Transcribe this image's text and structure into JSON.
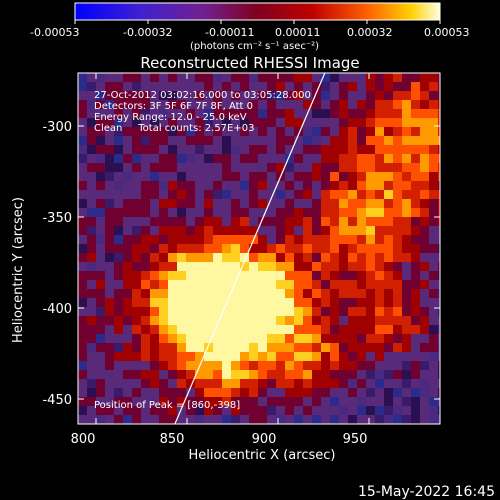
{
  "colorbar": {
    "ticks": [
      "-0.00053",
      "-0.00032",
      "-0.00011",
      "0.00011",
      "0.00032",
      "0.00053"
    ],
    "units": "(photons cm⁻² s⁻¹ asec⁻²)"
  },
  "title": "Reconstructed RHESSI Image",
  "info": {
    "time": "27-Oct-2012 03:02:16.000 to 03:05:28.000",
    "detectors": "Detectors: 3F 5F 6F 7F 8F, Att 0",
    "energy": "Energy Range: 12.0 - 25.0 keV",
    "method": "Clean     Total counts: 2.57E+03"
  },
  "peak": "Position of Peak = [860,-398]",
  "x_axis": {
    "label": "Heliocentric X (arcsec)",
    "ticks": [
      "800",
      "850",
      "900",
      "950"
    ]
  },
  "y_axis": {
    "label": "Heliocentric Y (arcsec)",
    "ticks": [
      "-300",
      "-350",
      "-400",
      "-450"
    ]
  },
  "footer": "15-May-2022 16:45",
  "colors": {
    "background": "#000000",
    "foreground": "#ffffff",
    "limb": "#ffffff"
  },
  "chart_data": {
    "type": "heatmap",
    "title": "Reconstructed RHESSI Image",
    "xlabel": "Heliocentric X (arcsec)",
    "ylabel": "Heliocentric Y (arcsec)",
    "xlim": [
      790,
      988
    ],
    "ylim": [
      -465,
      -267
    ],
    "colorbar_range": [
      -0.00053,
      0.00053
    ],
    "peak_position": [
      860,
      -398
    ],
    "limb_x_at_ymin": 843,
    "limb_x_at_ymax": 925
  }
}
